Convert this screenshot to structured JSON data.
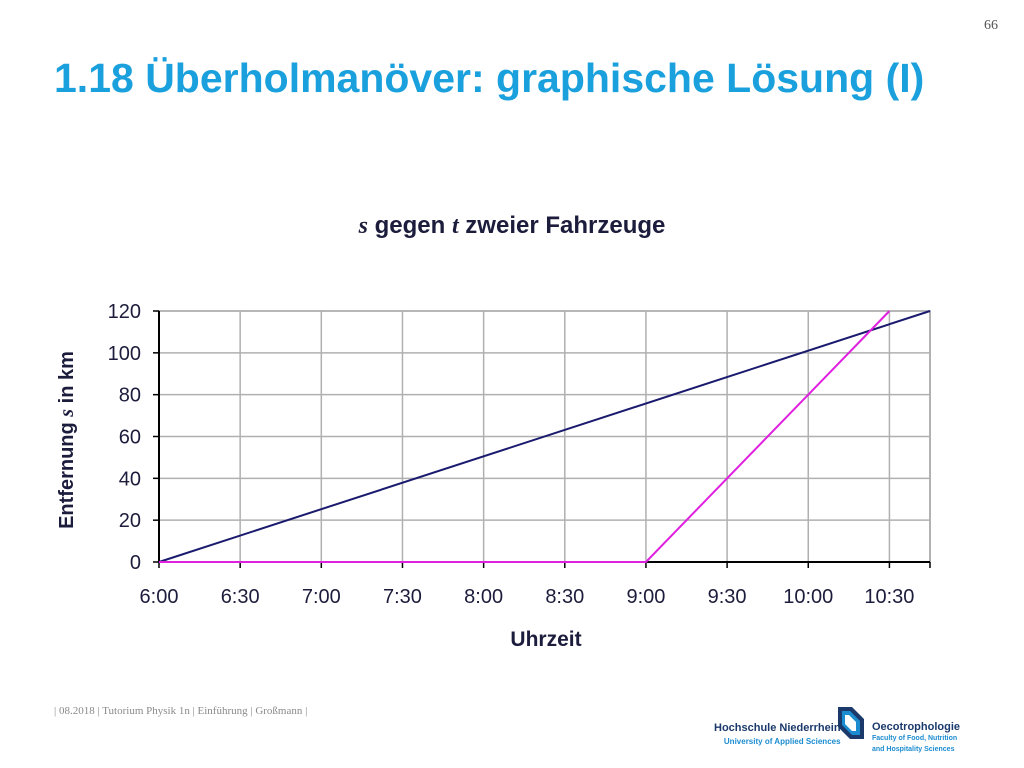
{
  "page_number": "66",
  "slide_title": "1.18 Überholmanöver: graphische Lösung (I)",
  "footer": "| 08.2018 | Tutorium Physik 1n | Einführung | Großmann |",
  "logos": {
    "hochschule_name": "Hochschule Niederrhein",
    "hochschule_sub": "University of Applied Sciences",
    "faculty_name": "Oecotrophologie",
    "faculty_sub_1": "Faculty of Food, Nutrition",
    "faculty_sub_2": "and Hospitality Sciences"
  },
  "chart_data": {
    "type": "line",
    "title": {
      "var_s": "s",
      "part1": " gegen ",
      "var_t": "t",
      "part2": " zweier Fahrzeuge"
    },
    "xlabel": "Uhrzeit",
    "ylabel": {
      "part1": "Entfernung ",
      "var_s": "s",
      "part2": " in km"
    },
    "x_ticks": [
      "6:00",
      "6:30",
      "7:00",
      "7:30",
      "8:00",
      "8:30",
      "9:00",
      "9:30",
      "10:00",
      "10:30"
    ],
    "y_ticks": [
      0,
      20,
      40,
      60,
      80,
      100,
      120
    ],
    "xlim": [
      "6:00",
      "10:45"
    ],
    "ylim": [
      0,
      120
    ],
    "grid": true,
    "legend": "none",
    "series": [
      {
        "color": "#1a1a6e",
        "points": [
          [
            "6:00",
            0
          ],
          [
            "10:45",
            120
          ]
        ]
      },
      {
        "color": "#e020e0",
        "points": [
          [
            "6:00",
            0
          ],
          [
            "9:00",
            0
          ],
          [
            "10:30",
            120
          ]
        ]
      }
    ]
  }
}
